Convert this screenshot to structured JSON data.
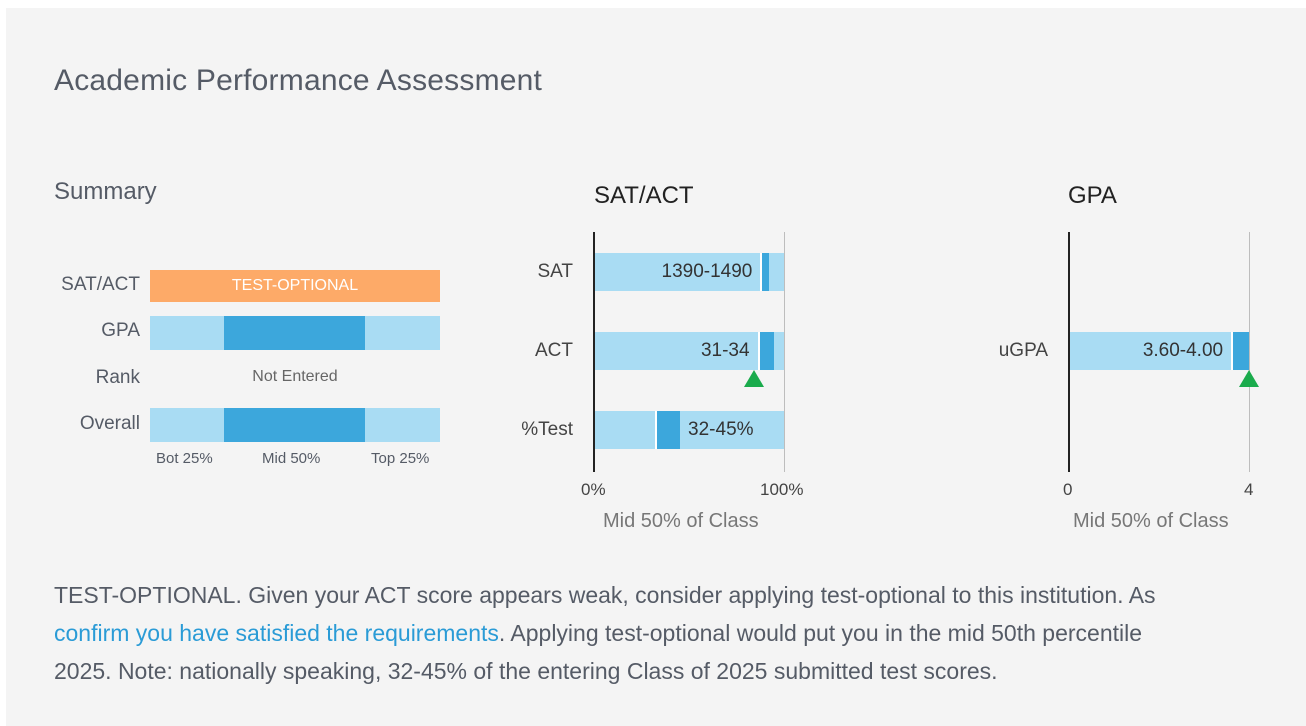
{
  "title": "Academic Performance Assessment",
  "summary": {
    "title": "Summary",
    "rows": [
      {
        "label": "SAT/ACT",
        "status": "TEST-OPTIONAL"
      },
      {
        "label": "GPA",
        "percentile_band": "Mid 50%"
      },
      {
        "label": "Rank",
        "status": "Not Entered"
      },
      {
        "label": "Overall",
        "percentile_band": "Mid 50%"
      }
    ],
    "axis": [
      "Bot 25%",
      "Mid 50%",
      "Top 25%"
    ],
    "colors": {
      "test_optional": "#fdaa68",
      "band_light": "#a9dcf3",
      "band_dark": "#3ca7dc"
    }
  },
  "sat_act": {
    "title": "SAT/ACT",
    "axis_min_label": "0%",
    "axis_max_label": "100%",
    "axis_title": "Mid 50% of Class"
  },
  "gpa": {
    "title": "GPA",
    "axis_min_label": "0",
    "axis_max_label": "4",
    "axis_title": "Mid 50% of Class"
  },
  "chart_data": [
    {
      "type": "bar",
      "title": "SAT/ACT",
      "xlabel": "Mid 50% of Class",
      "xlim": [
        0,
        100
      ],
      "categories": [
        "SAT",
        "ACT",
        "%Test"
      ],
      "range_labels": [
        "1390-1490",
        "31-34",
        "32-45%"
      ],
      "highlight_start": [
        87.5,
        86,
        32
      ],
      "highlight_end": [
        92,
        94.5,
        45
      ],
      "marker_position": {
        "category": "ACT",
        "x": 84
      }
    },
    {
      "type": "bar",
      "title": "GPA",
      "xlabel": "Mid 50% of Class",
      "xlim": [
        0,
        4
      ],
      "categories": [
        "uGPA"
      ],
      "range_labels": [
        "3.60-4.00"
      ],
      "highlight_start": [
        3.6
      ],
      "highlight_end": [
        4.0
      ],
      "marker_position": {
        "category": "uGPA",
        "x": 4.0
      }
    }
  ],
  "paragraph": {
    "line1": "TEST-OPTIONAL. Given your ACT score appears weak, consider applying test-optional to this institution. As",
    "link": "confirm you have satisfied the requirements",
    "line2_rest": ". Applying test-optional would put you in the mid 50th percentile",
    "line3": "2025. Note: nationally speaking, 32-45% of the entering Class of 2025 submitted test scores."
  }
}
